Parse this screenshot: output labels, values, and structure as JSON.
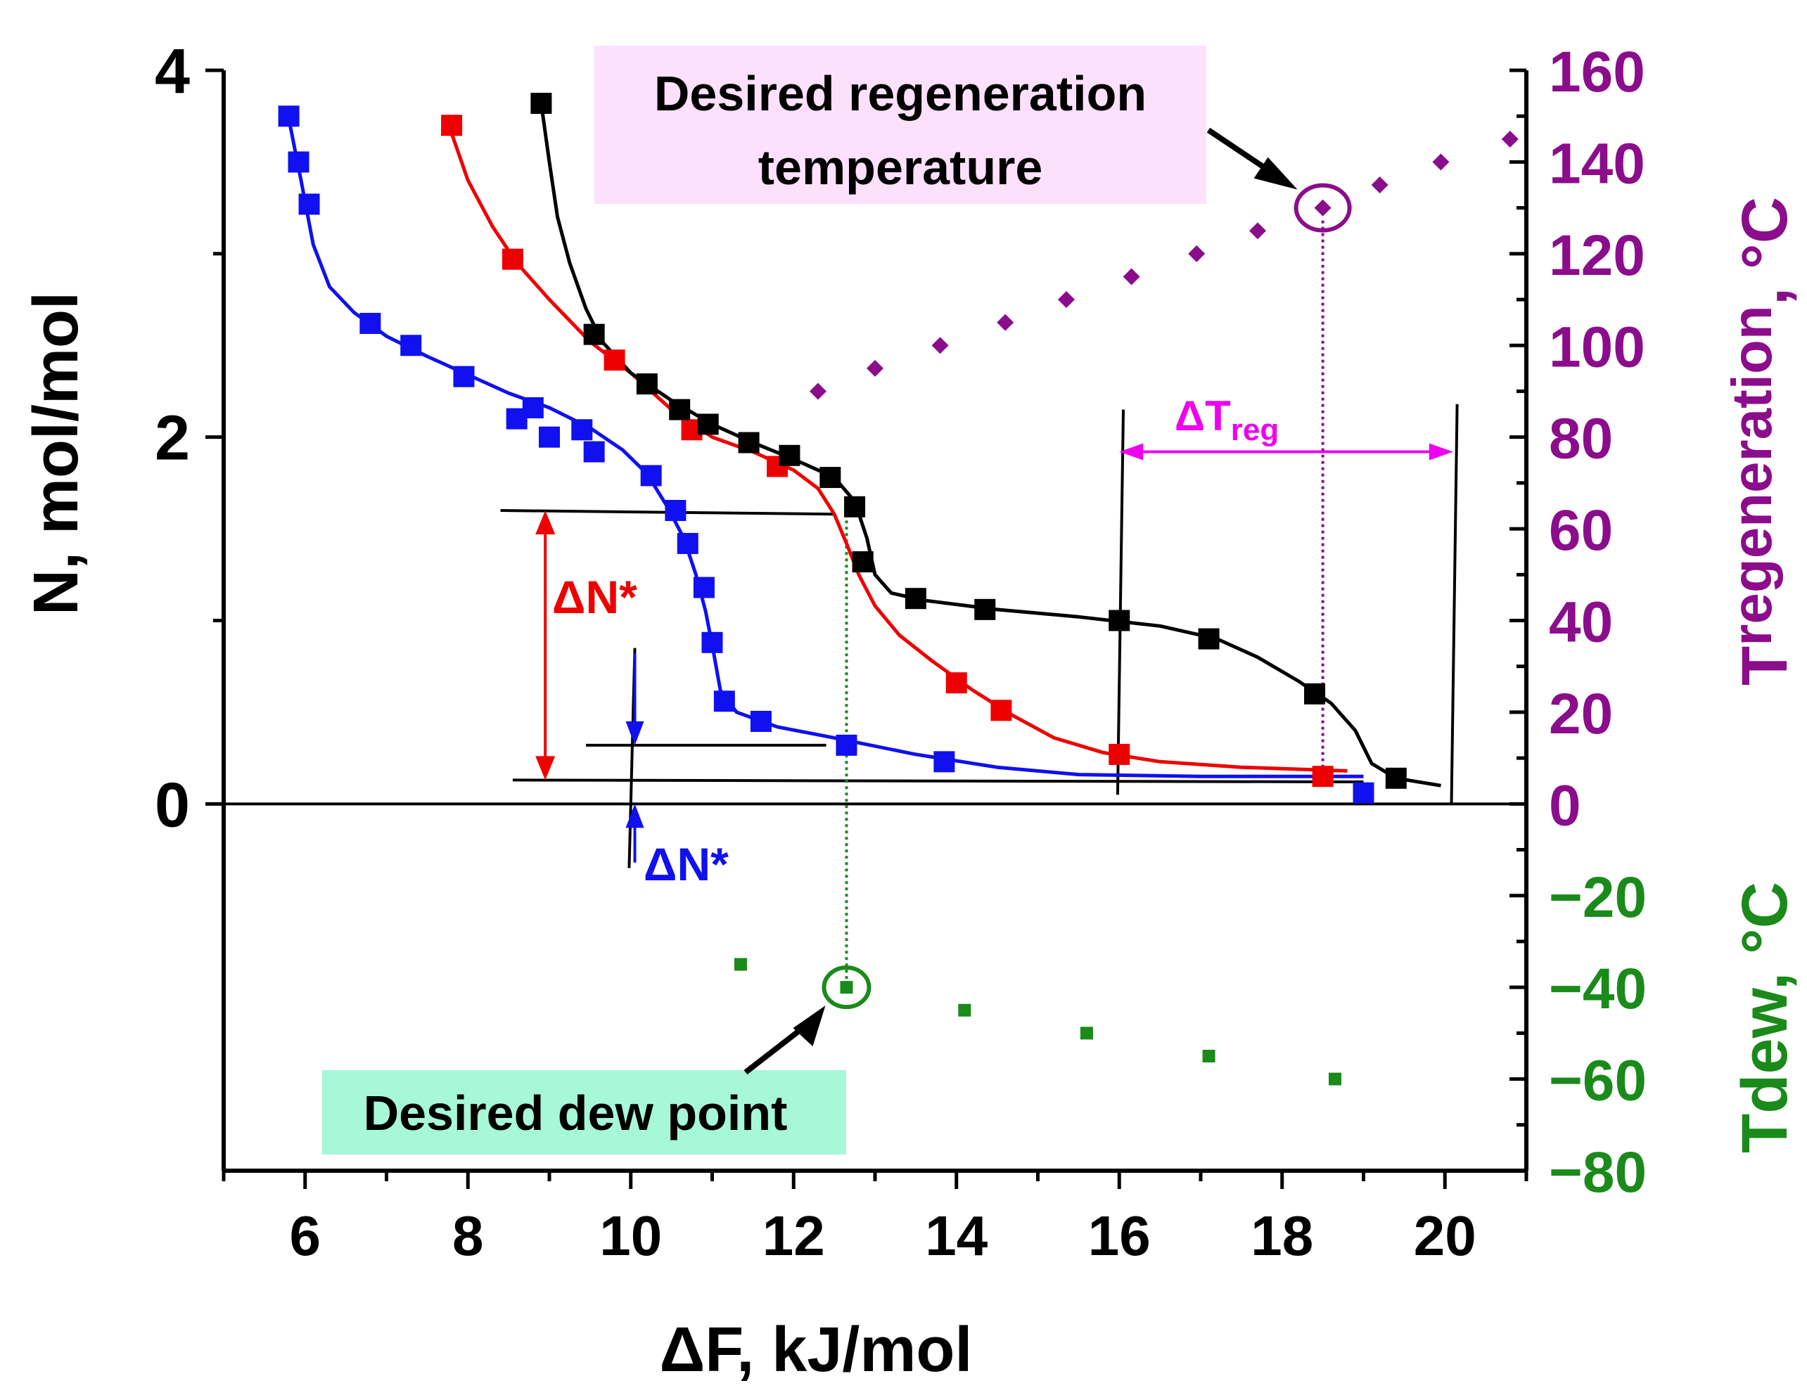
{
  "chart_data": {
    "type": "scatter",
    "xlabel": "ΔF, kJ/mol",
    "ylabel": "N, mol/mol",
    "xlim": [
      5,
      21
    ],
    "ylim": [
      -2,
      4
    ],
    "x_ticks": [
      "6",
      "8",
      "10",
      "12",
      "14",
      "16",
      "18",
      "20"
    ],
    "y_ticks": [
      "0",
      "2",
      "4"
    ],
    "right_axis_top": {
      "label_main": "T",
      "label_sub": "regeneration",
      "label_unit": ", °C",
      "ylim": [
        0,
        160
      ],
      "ticks": [
        "0",
        "20",
        "40",
        "60",
        "80",
        "100",
        "120",
        "140",
        "160"
      ],
      "color": "#8b0d8b"
    },
    "right_axis_bottom": {
      "label": "Tdew, °C",
      "ylim": [
        -80,
        0
      ],
      "ticks": [
        "−20",
        "−40",
        "−60",
        "−80"
      ],
      "color": "#1a8a1a"
    },
    "series": [
      {
        "name": "blue",
        "color": "#1010f0",
        "points": [
          [
            5.8,
            3.75
          ],
          [
            5.92,
            3.5
          ],
          [
            6.05,
            3.27
          ],
          [
            6.8,
            2.62
          ],
          [
            7.3,
            2.5
          ],
          [
            7.95,
            2.33
          ],
          [
            8.6,
            2.1
          ],
          [
            8.8,
            2.16
          ],
          [
            9.0,
            2.0
          ],
          [
            9.4,
            2.04
          ],
          [
            9.55,
            1.92
          ],
          [
            10.25,
            1.79
          ],
          [
            10.55,
            1.6
          ],
          [
            10.7,
            1.42
          ],
          [
            10.9,
            1.18
          ],
          [
            11.0,
            0.88
          ],
          [
            11.15,
            0.56
          ],
          [
            11.6,
            0.45
          ],
          [
            12.65,
            0.32
          ],
          [
            13.85,
            0.23
          ],
          [
            19.0,
            0.06
          ]
        ],
        "fit": [
          [
            5.78,
            3.78
          ],
          [
            5.95,
            3.4
          ],
          [
            6.1,
            3.05
          ],
          [
            6.3,
            2.82
          ],
          [
            6.6,
            2.68
          ],
          [
            7.0,
            2.55
          ],
          [
            7.5,
            2.44
          ],
          [
            8.0,
            2.34
          ],
          [
            8.5,
            2.24
          ],
          [
            9.0,
            2.16
          ],
          [
            9.5,
            2.05
          ],
          [
            9.9,
            1.93
          ],
          [
            10.2,
            1.8
          ],
          [
            10.45,
            1.62
          ],
          [
            10.65,
            1.45
          ],
          [
            10.8,
            1.25
          ],
          [
            10.92,
            1.05
          ],
          [
            11.02,
            0.82
          ],
          [
            11.1,
            0.62
          ],
          [
            11.3,
            0.5
          ],
          [
            11.8,
            0.42
          ],
          [
            12.5,
            0.36
          ],
          [
            13.5,
            0.27
          ],
          [
            14.5,
            0.2
          ],
          [
            15.5,
            0.16
          ],
          [
            17.0,
            0.15
          ],
          [
            19.0,
            0.15
          ]
        ]
      },
      {
        "name": "red",
        "color": "#ee0000",
        "points": [
          [
            7.8,
            3.7
          ],
          [
            8.55,
            2.97
          ],
          [
            9.8,
            2.42
          ],
          [
            10.75,
            2.04
          ],
          [
            11.8,
            1.84
          ],
          [
            12.85,
            1.32
          ],
          [
            14.0,
            0.66
          ],
          [
            14.55,
            0.51
          ],
          [
            16.0,
            0.27
          ],
          [
            18.5,
            0.15
          ]
        ],
        "fit": [
          [
            7.75,
            3.72
          ],
          [
            8.0,
            3.4
          ],
          [
            8.3,
            3.15
          ],
          [
            8.6,
            2.95
          ],
          [
            9.0,
            2.75
          ],
          [
            9.5,
            2.52
          ],
          [
            10.0,
            2.35
          ],
          [
            10.5,
            2.15
          ],
          [
            11.0,
            2.0
          ],
          [
            11.5,
            1.92
          ],
          [
            12.0,
            1.82
          ],
          [
            12.3,
            1.72
          ],
          [
            12.5,
            1.58
          ],
          [
            12.65,
            1.42
          ],
          [
            12.8,
            1.25
          ],
          [
            13.0,
            1.08
          ],
          [
            13.3,
            0.92
          ],
          [
            13.7,
            0.78
          ],
          [
            14.2,
            0.62
          ],
          [
            14.7,
            0.48
          ],
          [
            15.2,
            0.36
          ],
          [
            15.8,
            0.28
          ],
          [
            16.5,
            0.23
          ],
          [
            17.5,
            0.2
          ],
          [
            18.8,
            0.18
          ]
        ]
      },
      {
        "name": "black",
        "color": "#000000",
        "points": [
          [
            8.9,
            3.82
          ],
          [
            9.55,
            2.56
          ],
          [
            10.2,
            2.29
          ],
          [
            10.6,
            2.15
          ],
          [
            10.95,
            2.07
          ],
          [
            11.45,
            1.97
          ],
          [
            11.95,
            1.9
          ],
          [
            12.45,
            1.78
          ],
          [
            12.75,
            1.62
          ],
          [
            12.85,
            1.32
          ],
          [
            13.5,
            1.12
          ],
          [
            14.35,
            1.06
          ],
          [
            16.0,
            1.0
          ],
          [
            17.1,
            0.9
          ],
          [
            18.4,
            0.6
          ],
          [
            19.4,
            0.14
          ]
        ],
        "fit": [
          [
            8.9,
            3.82
          ],
          [
            9.0,
            3.5
          ],
          [
            9.1,
            3.2
          ],
          [
            9.25,
            2.95
          ],
          [
            9.45,
            2.7
          ],
          [
            9.65,
            2.52
          ],
          [
            10.0,
            2.35
          ],
          [
            10.5,
            2.2
          ],
          [
            11.0,
            2.07
          ],
          [
            11.5,
            1.97
          ],
          [
            12.0,
            1.88
          ],
          [
            12.5,
            1.78
          ],
          [
            12.75,
            1.65
          ],
          [
            12.9,
            1.45
          ],
          [
            13.0,
            1.25
          ],
          [
            13.2,
            1.15
          ],
          [
            13.6,
            1.11
          ],
          [
            14.5,
            1.06
          ],
          [
            15.5,
            1.02
          ],
          [
            16.5,
            0.97
          ],
          [
            17.2,
            0.9
          ],
          [
            17.7,
            0.8
          ],
          [
            18.2,
            0.67
          ],
          [
            18.6,
            0.55
          ],
          [
            18.9,
            0.4
          ],
          [
            19.1,
            0.22
          ],
          [
            19.4,
            0.14
          ],
          [
            19.95,
            0.1
          ]
        ]
      }
    ],
    "regeneration_points": {
      "color": "#8b0d8b",
      "x": [
        12.3,
        13.0,
        13.8,
        14.6,
        15.35,
        16.15,
        16.95,
        17.7,
        18.5,
        19.2,
        19.95,
        20.8
      ],
      "t": [
        90,
        95,
        100,
        105,
        110,
        115,
        120,
        125,
        130,
        135,
        140,
        145
      ]
    },
    "dew_points": {
      "color": "#1a8a1a",
      "x": [
        11.35,
        12.65,
        14.1,
        15.6,
        17.1,
        18.65
      ],
      "t": [
        -35,
        -40,
        -45,
        -50,
        -55,
        -60
      ]
    },
    "annotations": {
      "regen_box": "Desired regeneration temperature",
      "regen_box_line1": "Desired regeneration",
      "regen_box_line2": "temperature",
      "dew_box": "Desired dew point",
      "delta_t_reg_main": "ΔT",
      "delta_t_reg_sub": "reg",
      "delta_n_red": "ΔN*",
      "delta_n_blue": "ΔN*",
      "delta_n_red_color": "#ee0000",
      "delta_n_blue_color": "#1010f0",
      "delta_t_color": "#ee00ee",
      "regen_box_color": "#fde0fc",
      "dew_box_color": "#a7f7d9",
      "selected_regen_x": 18.5,
      "selected_regen_t": 130,
      "selected_dew_x": 12.65,
      "selected_dew_t": -40,
      "delta_n_red_range": [
        0.13,
        1.6
      ],
      "delta_n_blue_range": [
        0.0,
        0.32
      ],
      "delta_t_reg_range": [
        16.0,
        20.1
      ]
    }
  }
}
